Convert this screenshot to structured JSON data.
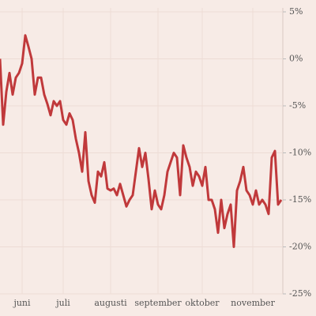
{
  "chart_data": {
    "type": "line",
    "categories": [
      null,
      null,
      null,
      null,
      null,
      null,
      null,
      "juni",
      null,
      null,
      null,
      null,
      null,
      null,
      null,
      null,
      null,
      null,
      null,
      null,
      "juli",
      null,
      null,
      null,
      null,
      null,
      null,
      null,
      null,
      null,
      null,
      null,
      null,
      null,
      null,
      "augusti",
      null,
      null,
      null,
      null,
      null,
      null,
      null,
      null,
      null,
      null,
      null,
      null,
      null,
      null,
      "september",
      null,
      null,
      null,
      null,
      null,
      null,
      null,
      null,
      null,
      null,
      null,
      null,
      null,
      "oktober",
      null,
      null,
      null,
      null,
      null,
      null,
      null,
      null,
      null,
      null,
      null,
      null,
      null,
      null,
      null,
      "november",
      null,
      null,
      null,
      null,
      null,
      null,
      null,
      null,
      null
    ],
    "values": [
      0,
      -7,
      -3.5,
      -1.5,
      -3.8,
      -2,
      -1.5,
      -0.5,
      2.5,
      1.3,
      0,
      -3.8,
      -2,
      -2,
      -3.8,
      -4.8,
      -6,
      -4.5,
      -5,
      -4.5,
      -6.5,
      -7,
      -5.8,
      -6.5,
      -8.5,
      -10,
      -12,
      -7.8,
      -13,
      -14.5,
      -15.3,
      -12,
      -12.5,
      -11,
      -13.8,
      -14,
      -13.8,
      -14.5,
      -13.3,
      -14.5,
      -15.7,
      -15,
      -14.5,
      -12,
      -9.5,
      -11.5,
      -10,
      -12.8,
      -16,
      -14,
      -15.5,
      -16,
      -14.5,
      -12,
      -11,
      -10,
      -10.5,
      -14.5,
      -9.2,
      -10.5,
      -11.5,
      -13.5,
      -12,
      -12.5,
      -13.5,
      -11.5,
      -15,
      -15,
      -16,
      -18.5,
      -15,
      -18,
      -16.5,
      -15.5,
      -20,
      -14,
      -13,
      -11.5,
      -14,
      -14.5,
      -15.5,
      -14,
      -15.5,
      -15,
      -15.5,
      -16.5,
      -10.5,
      -9.8,
      -15.5,
      -15
    ],
    "color": "#c0393b",
    "ylim": [
      -25,
      5
    ],
    "yticks": [
      {
        "value": 5,
        "label": "5%"
      },
      {
        "value": 0,
        "label": "0%"
      },
      {
        "value": -5,
        "label": "-5%"
      },
      {
        "value": -10,
        "label": "-10%"
      },
      {
        "value": -15,
        "label": "-15%"
      },
      {
        "value": -20,
        "label": "-20%"
      },
      {
        "value": -25,
        "label": "-25%"
      }
    ],
    "grid": true
  }
}
